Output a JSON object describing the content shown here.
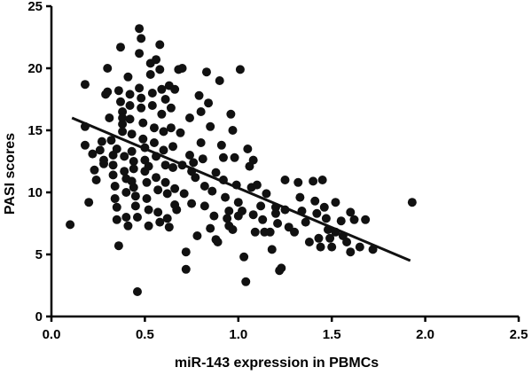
{
  "chart_data": {
    "type": "scatter",
    "title": "",
    "xlabel": "miR-143 expression in PBMCs",
    "ylabel": "PASI scores",
    "xlim": [
      0,
      2.5
    ],
    "ylim": [
      0,
      25
    ],
    "xticks": [
      "0.0",
      "0.5",
      "1.0",
      "1.5",
      "2.0",
      "2.5"
    ],
    "yticks": [
      "0",
      "5",
      "10",
      "15",
      "20",
      "25"
    ],
    "grid": false,
    "legend": "none",
    "point_color": "#111111",
    "fit_line": {
      "x": [
        0.11,
        1.92
      ],
      "y": [
        16.0,
        4.5
      ]
    },
    "points": [
      [
        0.1,
        7.4
      ],
      [
        0.18,
        18.7
      ],
      [
        0.18,
        15.3
      ],
      [
        0.2,
        9.2
      ],
      [
        0.18,
        13.8
      ],
      [
        0.22,
        13.1
      ],
      [
        0.23,
        11.8
      ],
      [
        0.26,
        13.4
      ],
      [
        0.27,
        14.1
      ],
      [
        0.28,
        12.3
      ],
      [
        0.29,
        17.9
      ],
      [
        0.3,
        18.1
      ],
      [
        0.3,
        20.0
      ],
      [
        0.31,
        16.0
      ],
      [
        0.32,
        14.2
      ],
      [
        0.33,
        13.0
      ],
      [
        0.33,
        12.2
      ],
      [
        0.33,
        11.4
      ],
      [
        0.34,
        10.5
      ],
      [
        0.34,
        9.5
      ],
      [
        0.35,
        8.8
      ],
      [
        0.35,
        7.8
      ],
      [
        0.36,
        5.7
      ],
      [
        0.36,
        18.2
      ],
      [
        0.37,
        21.7
      ],
      [
        0.37,
        17.3
      ],
      [
        0.38,
        16.5
      ],
      [
        0.38,
        15.5
      ],
      [
        0.38,
        14.9
      ],
      [
        0.39,
        12.9
      ],
      [
        0.39,
        11.7
      ],
      [
        0.4,
        11.1
      ],
      [
        0.4,
        10.0
      ],
      [
        0.4,
        8.0
      ],
      [
        0.41,
        7.3
      ],
      [
        0.41,
        19.3
      ],
      [
        0.42,
        17.9
      ],
      [
        0.42,
        15.9
      ],
      [
        0.43,
        14.7
      ],
      [
        0.43,
        13.3
      ],
      [
        0.44,
        12.5
      ],
      [
        0.44,
        11.9
      ],
      [
        0.44,
        10.4
      ],
      [
        0.45,
        9.7
      ],
      [
        0.45,
        8.9
      ],
      [
        0.46,
        8.0
      ],
      [
        0.46,
        2.0
      ],
      [
        0.47,
        23.2
      ],
      [
        0.47,
        21.2
      ],
      [
        0.47,
        18.4
      ],
      [
        0.48,
        17.6
      ],
      [
        0.48,
        16.8
      ],
      [
        0.49,
        15.6
      ],
      [
        0.49,
        14.3
      ],
      [
        0.5,
        13.6
      ],
      [
        0.5,
        12.6
      ],
      [
        0.5,
        11.7
      ],
      [
        0.51,
        10.8
      ],
      [
        0.51,
        9.5
      ],
      [
        0.52,
        8.6
      ],
      [
        0.52,
        7.3
      ],
      [
        0.53,
        20.4
      ],
      [
        0.53,
        19.5
      ],
      [
        0.54,
        18.0
      ],
      [
        0.54,
        17.0
      ],
      [
        0.55,
        15.2
      ],
      [
        0.55,
        14.0
      ],
      [
        0.56,
        12.9
      ],
      [
        0.56,
        11.2
      ],
      [
        0.57,
        10.2
      ],
      [
        0.57,
        8.4
      ],
      [
        0.58,
        21.9
      ],
      [
        0.58,
        19.9
      ],
      [
        0.59,
        18.3
      ],
      [
        0.59,
        16.3
      ],
      [
        0.6,
        14.9
      ],
      [
        0.6,
        13.4
      ],
      [
        0.61,
        12.2
      ],
      [
        0.61,
        10.8
      ],
      [
        0.62,
        9.9
      ],
      [
        0.62,
        7.9
      ],
      [
        0.63,
        7.2
      ],
      [
        0.63,
        18.6
      ],
      [
        0.64,
        16.8
      ],
      [
        0.64,
        15.2
      ],
      [
        0.65,
        13.7
      ],
      [
        0.65,
        12.0
      ],
      [
        0.66,
        10.3
      ],
      [
        0.67,
        8.6
      ],
      [
        0.68,
        19.9
      ],
      [
        0.69,
        14.8
      ],
      [
        0.7,
        12.2
      ],
      [
        0.71,
        9.9
      ],
      [
        0.72,
        5.2
      ],
      [
        0.72,
        3.8
      ],
      [
        0.74,
        16.0
      ],
      [
        0.74,
        13.0
      ],
      [
        0.75,
        9.1
      ],
      [
        0.76,
        12.4
      ],
      [
        0.77,
        11.2
      ],
      [
        0.78,
        6.5
      ],
      [
        0.79,
        17.8
      ],
      [
        0.8,
        16.5
      ],
      [
        0.8,
        14.0
      ],
      [
        0.81,
        12.7
      ],
      [
        0.82,
        10.5
      ],
      [
        0.82,
        8.9
      ],
      [
        0.83,
        19.7
      ],
      [
        0.84,
        17.2
      ],
      [
        0.85,
        15.3
      ],
      [
        0.86,
        10.1
      ],
      [
        0.87,
        8.1
      ],
      [
        0.88,
        6.2
      ],
      [
        0.89,
        6.0
      ],
      [
        0.9,
        19.0
      ],
      [
        0.91,
        13.8
      ],
      [
        0.92,
        12.8
      ],
      [
        0.92,
        11.0
      ],
      [
        0.93,
        9.6
      ],
      [
        0.94,
        7.9
      ],
      [
        0.95,
        7.3
      ],
      [
        0.96,
        16.3
      ],
      [
        0.97,
        15.0
      ],
      [
        0.98,
        12.8
      ],
      [
        0.99,
        10.6
      ],
      [
        1.0,
        9.2
      ],
      [
        1.0,
        8.1
      ],
      [
        1.01,
        19.9
      ],
      [
        1.02,
        8.5
      ],
      [
        1.03,
        4.8
      ],
      [
        1.04,
        2.8
      ],
      [
        1.05,
        13.5
      ],
      [
        1.06,
        12.1
      ],
      [
        1.07,
        10.4
      ],
      [
        1.08,
        8.2
      ],
      [
        1.09,
        6.8
      ],
      [
        1.1,
        10.6
      ],
      [
        1.12,
        8.9
      ],
      [
        1.13,
        7.8
      ],
      [
        1.15,
        9.9
      ],
      [
        1.17,
        6.8
      ],
      [
        1.18,
        5.4
      ],
      [
        1.2,
        8.8
      ],
      [
        1.21,
        7.5
      ],
      [
        1.22,
        3.7
      ],
      [
        1.23,
        3.9
      ],
      [
        1.25,
        8.6
      ],
      [
        1.27,
        7.2
      ],
      [
        1.3,
        6.8
      ],
      [
        1.32,
        10.8
      ],
      [
        1.34,
        8.5
      ],
      [
        1.36,
        7.6
      ],
      [
        1.38,
        6.0
      ],
      [
        1.4,
        10.9
      ],
      [
        1.41,
        9.3
      ],
      [
        1.42,
        8.3
      ],
      [
        1.43,
        6.3
      ],
      [
        1.44,
        5.6
      ],
      [
        1.45,
        11.0
      ],
      [
        1.46,
        8.8
      ],
      [
        1.47,
        7.9
      ],
      [
        1.48,
        7.0
      ],
      [
        1.49,
        6.3
      ],
      [
        1.5,
        5.6
      ],
      [
        1.52,
        9.2
      ],
      [
        1.55,
        7.7
      ],
      [
        1.56,
        6.5
      ],
      [
        1.58,
        6.0
      ],
      [
        1.6,
        5.2
      ],
      [
        1.62,
        7.8
      ],
      [
        1.65,
        5.6
      ],
      [
        1.68,
        7.8
      ],
      [
        1.72,
        5.4
      ],
      [
        1.93,
        9.2
      ],
      [
        1.2,
        8.3
      ],
      [
        1.14,
        6.8
      ],
      [
        0.95,
        8.5
      ],
      [
        0.85,
        7.1
      ],
      [
        0.75,
        11.7
      ],
      [
        0.66,
        9.0
      ],
      [
        0.58,
        7.6
      ],
      [
        0.52,
        12.1
      ],
      [
        0.43,
        10.9
      ],
      [
        0.35,
        13.5
      ],
      [
        0.28,
        12.6
      ],
      [
        0.24,
        11.0
      ],
      [
        0.61,
        17.5
      ],
      [
        0.66,
        18.3
      ],
      [
        0.7,
        20.0
      ],
      [
        0.48,
        22.4
      ],
      [
        0.56,
        20.7
      ],
      [
        0.42,
        17.0
      ],
      [
        0.38,
        16.0
      ],
      [
        0.88,
        11.6
      ],
      [
        0.97,
        7.0
      ],
      [
        1.08,
        12.6
      ],
      [
        1.25,
        11.0
      ],
      [
        1.33,
        9.6
      ],
      [
        1.52,
        6.8
      ],
      [
        1.6,
        8.4
      ]
    ]
  }
}
